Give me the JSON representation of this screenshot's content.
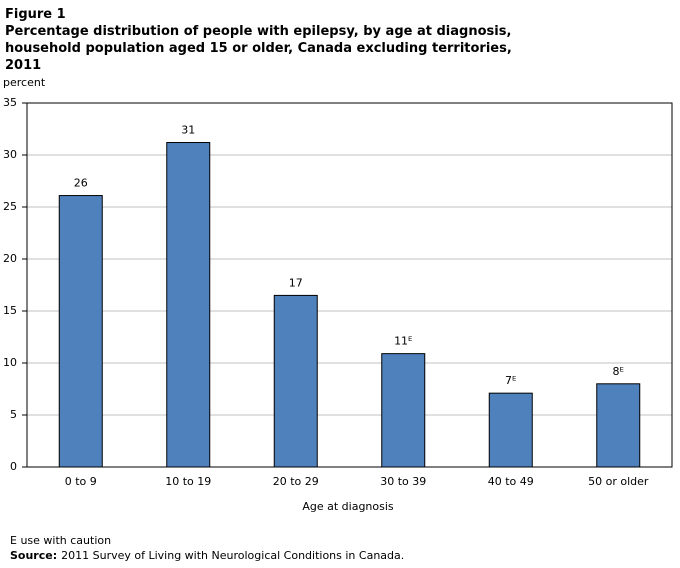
{
  "chart_data": {
    "type": "bar",
    "title": "Figure 1",
    "subtitle": [
      "Percentage distribution of people with epilepsy, by age at diagnosis,",
      "household population aged 15 or older, Canada excluding territories,",
      "2011"
    ],
    "y_label": "percent",
    "x_label": "Age at diagnosis",
    "categories": [
      "0 to 9",
      "10 to 19",
      "20 to 29",
      "30 to 39",
      "40 to 49",
      "50 or older"
    ],
    "values": [
      26.1,
      31.2,
      16.5,
      10.9,
      7.1,
      8.0
    ],
    "value_labels": [
      "26",
      "31",
      "17",
      "11ᴱ",
      "7ᴱ",
      "8ᴱ"
    ],
    "color": "#4f81bd",
    "ylim": [
      0,
      35
    ],
    "yticks": [
      0,
      5,
      10,
      15,
      20,
      25,
      30,
      35
    ],
    "grid": true,
    "note": "E use with caution",
    "source_label": "Source:",
    "source": "2011 Survey of Living with Neurological Conditions in Canada."
  }
}
